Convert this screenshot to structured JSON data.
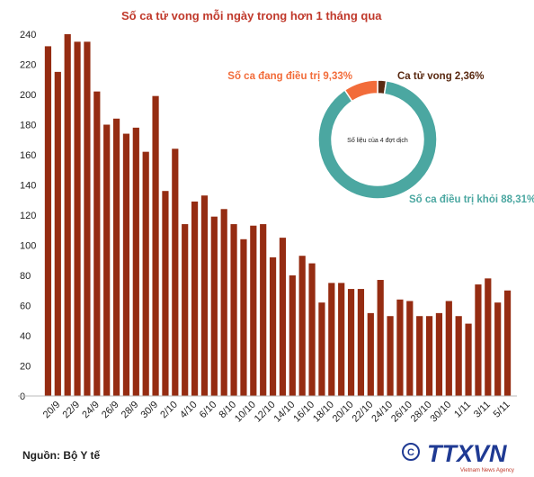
{
  "chart_data": [
    {
      "type": "bar",
      "title": "Số ca tử vong mỗi ngày trong hơn 1 tháng qua",
      "categories": [
        null,
        "20/9",
        null,
        "22/9",
        null,
        "24/9",
        null,
        "26/9",
        null,
        "28/9",
        null,
        "30/9",
        null,
        "2/10",
        null,
        "4/10",
        null,
        "6/10",
        null,
        "8/10",
        null,
        "10/10",
        null,
        "12/10",
        null,
        "14/10",
        null,
        "16/10",
        null,
        "18/10",
        null,
        "20/10",
        null,
        "22/10",
        null,
        "24/10",
        null,
        "26/10",
        null,
        "28/10",
        null,
        "30/10",
        null,
        "1/11",
        null,
        "3/11",
        null,
        "5/11"
      ],
      "values": [
        232,
        215,
        240,
        235,
        235,
        202,
        180,
        184,
        174,
        178,
        162,
        199,
        136,
        164,
        114,
        129,
        133,
        119,
        124,
        114,
        104,
        113,
        114,
        92,
        105,
        80,
        93,
        88,
        62,
        75,
        75,
        71,
        71,
        55,
        77,
        53,
        64,
        63,
        53,
        53,
        55,
        63,
        53,
        48,
        74,
        78,
        62,
        70
      ],
      "color": "#952c12",
      "ylim": [
        0,
        240
      ],
      "yticks": [
        0,
        20,
        40,
        60,
        80,
        100,
        120,
        140,
        160,
        180,
        200,
        220,
        240
      ],
      "source": "Nguồn: Bộ Y tế"
    },
    {
      "type": "pie",
      "center_text": "Số liệu của 4 đợt dịch",
      "slices": [
        {
          "name": "Ca tử vong",
          "value": 2.36,
          "value_label": "2,36%",
          "color": "#5a2a12"
        },
        {
          "name": "Số ca điều trị khỏi",
          "value": 88.31,
          "value_label": "88,31%",
          "color": "#4ba7a1"
        },
        {
          "name": "Số ca đang điều trị",
          "value": 9.33,
          "value_label": "9,33%",
          "color": "#f26c3a"
        }
      ],
      "logo": "TTXVN",
      "logo_sub": "Vietnam News Agency"
    }
  ]
}
